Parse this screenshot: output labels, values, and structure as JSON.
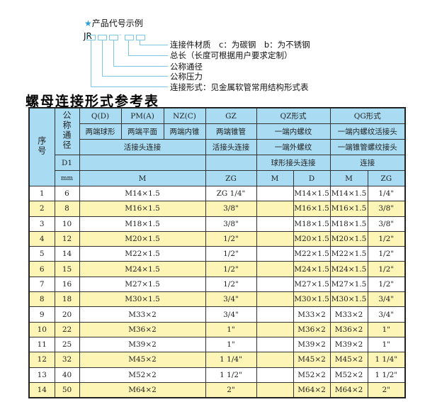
{
  "example": {
    "star": "★",
    "title": "产品代号示例",
    "prefix": "JR",
    "dash": "-",
    "labels": [
      "连接件材质　c：为碳钢　b：为不锈钢",
      "总长（长度可根据用户要求定制）",
      "公称通径",
      "公称压力",
      "连接形式：见金属软管常用结构形式表"
    ]
  },
  "table_title": "螺母连接形式参考表",
  "header": {
    "seq": "序号",
    "dn": "公称通径",
    "d1": "D1",
    "mm": "mm",
    "q": "Q(D)",
    "pm": "PM(A)",
    "nz": "NZ(C)",
    "gz": "GZ",
    "qz": "QZ形式",
    "qg": "QG形式",
    "q2": "两端球形",
    "pm2": "两端平面",
    "nz2": "两端内锥",
    "gz2": "两端锥管",
    "qz2": "一端内螺纹",
    "qg2": "一端内螺纹活接头",
    "m3": "活接头连接",
    "gz3": "活接头连接",
    "qz3": "一端外螺纹",
    "qg3": "一端锥管螺纹接头",
    "qz4": "球形接头连接",
    "qg4": "连接",
    "m": "M",
    "zg": "ZG",
    "qzm": "M",
    "qzd": "D",
    "qgm": "M",
    "qgzg": "ZG"
  },
  "rows": [
    [
      "1",
      "6",
      "M14×1.5",
      "ZG 1/4\"",
      "",
      "M14×1.5",
      "M14×1.5",
      "1/4\""
    ],
    [
      "2",
      "8",
      "M16×1.5",
      "3/8\"",
      "",
      "M16×1.5",
      "M16×1.5",
      "3/8\""
    ],
    [
      "3",
      "10",
      "M18×1.5",
      "3/8\"",
      "",
      "M18×1.5",
      "M18×1.5",
      "3/8\""
    ],
    [
      "4",
      "12",
      "M20×1.5",
      "1/2\"",
      "",
      "M20×1.5",
      "M20×1.5",
      "1/2\""
    ],
    [
      "5",
      "14",
      "M22×1.5",
      "1/2\"",
      "",
      "M22×1.5",
      "M22×1.5",
      "1/2\""
    ],
    [
      "6",
      "15",
      "M24×1.5",
      "1/2\"",
      "",
      "M24×1.5",
      "M24×1.5",
      "1/2\""
    ],
    [
      "7",
      "16",
      "M27×1.5",
      "1/2\"",
      "",
      "M27×1.5",
      "M27×1.5",
      "1/2\""
    ],
    [
      "8",
      "18",
      "M30×1.5",
      "3/4\"",
      "",
      "M30×1.5",
      "M30×1.5",
      "3/4\""
    ],
    [
      "9",
      "20",
      "M33×2",
      "3/4\"",
      "",
      "M33×2",
      "M33×2",
      "3/4\""
    ],
    [
      "10",
      "22",
      "M36×2",
      "1\"",
      "",
      "M36×2",
      "M36×2",
      "1\""
    ],
    [
      "11",
      "25",
      "M39×2",
      "1\"",
      "",
      "M39×2",
      "M39×2",
      "1\""
    ],
    [
      "12",
      "32",
      "M45×2",
      "1 1/4\"",
      "",
      "M45×2",
      "M45×2",
      "1 1/4\""
    ],
    [
      "13",
      "40",
      "M52×2",
      "1 1/2\"",
      "",
      "M52×2",
      "M52×2",
      "1 1/2\""
    ],
    [
      "14",
      "50",
      "M64×2",
      "2\"",
      "",
      "M64×2",
      "M64×2",
      "2\""
    ]
  ],
  "colors": {
    "header_bg": "#a9dcf3",
    "stripe": "#fcf5b5",
    "line": "#7cc8e0",
    "star": "#2a9fd6"
  }
}
